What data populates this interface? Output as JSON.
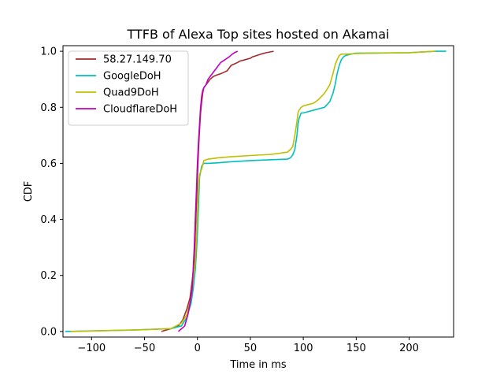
{
  "chart_data": {
    "type": "line",
    "title": "TTFB of Alexa Top sites hosted on Akamai",
    "xlabel": "Time in ms",
    "ylabel": "CDF",
    "xlim": [
      -127,
      242
    ],
    "ylim": [
      -0.02,
      1.02
    ],
    "xticks": [
      -100,
      -50,
      0,
      50,
      100,
      150,
      200
    ],
    "xtick_labels": [
      "−100",
      "−50",
      "0",
      "50",
      "100",
      "150",
      "200"
    ],
    "yticks": [
      0.0,
      0.2,
      0.4,
      0.6,
      0.8,
      1.0
    ],
    "ytick_labels": [
      "0.0",
      "0.2",
      "0.4",
      "0.6",
      "0.8",
      "1.0"
    ],
    "grid": false,
    "legend_position": "top-left",
    "series": [
      {
        "name": "58.27.149.70",
        "color": "#a52a2a",
        "x": [
          -34,
          -25,
          -18,
          -14,
          -10,
          -7,
          -5,
          -3,
          -2,
          -1,
          0,
          1,
          2,
          3,
          4,
          5,
          6,
          8,
          10,
          12,
          15,
          18,
          22,
          25,
          28,
          30,
          32,
          35,
          38,
          40,
          45,
          50,
          52,
          60,
          65,
          72
        ],
        "y": [
          0.0,
          0.01,
          0.02,
          0.04,
          0.08,
          0.12,
          0.18,
          0.25,
          0.35,
          0.45,
          0.55,
          0.65,
          0.72,
          0.78,
          0.82,
          0.85,
          0.87,
          0.88,
          0.89,
          0.9,
          0.91,
          0.915,
          0.92,
          0.925,
          0.93,
          0.94,
          0.95,
          0.955,
          0.96,
          0.965,
          0.97,
          0.975,
          0.98,
          0.99,
          0.995,
          1.0
        ]
      },
      {
        "name": "GoogleDoH",
        "color": "#00bfbf",
        "x": [
          -125,
          -60,
          -25,
          -15,
          -10,
          -6,
          -4,
          -2,
          -1,
          0,
          1,
          2,
          4,
          6,
          8,
          10,
          20,
          30,
          50,
          70,
          85,
          88,
          90,
          92,
          94,
          95,
          96,
          98,
          100,
          105,
          110,
          115,
          120,
          125,
          128,
          130,
          132,
          134,
          136,
          138,
          140,
          145,
          150,
          200,
          225,
          235
        ],
        "y": [
          0.0,
          0.005,
          0.01,
          0.02,
          0.05,
          0.1,
          0.15,
          0.22,
          0.28,
          0.35,
          0.45,
          0.55,
          0.59,
          0.6,
          0.6,
          0.6,
          0.602,
          0.605,
          0.61,
          0.613,
          0.615,
          0.62,
          0.63,
          0.65,
          0.7,
          0.74,
          0.76,
          0.78,
          0.78,
          0.785,
          0.79,
          0.795,
          0.8,
          0.82,
          0.85,
          0.88,
          0.92,
          0.95,
          0.97,
          0.98,
          0.985,
          0.99,
          0.993,
          0.995,
          1.0,
          1.0
        ]
      },
      {
        "name": "Quad9DoH",
        "color": "#bfbf00",
        "x": [
          -120,
          -60,
          -25,
          -15,
          -10,
          -6,
          -4,
          -2,
          -1,
          0,
          1,
          2,
          4,
          6,
          10,
          20,
          30,
          50,
          70,
          85,
          88,
          90,
          92,
          94,
          95,
          96,
          98,
          100,
          105,
          110,
          115,
          120,
          125,
          128,
          130,
          132,
          134,
          136,
          138,
          140,
          150,
          200,
          225
        ],
        "y": [
          0.0,
          0.005,
          0.01,
          0.03,
          0.06,
          0.12,
          0.18,
          0.25,
          0.33,
          0.42,
          0.52,
          0.56,
          0.58,
          0.61,
          0.615,
          0.62,
          0.623,
          0.628,
          0.632,
          0.64,
          0.65,
          0.66,
          0.7,
          0.75,
          0.78,
          0.79,
          0.8,
          0.805,
          0.81,
          0.815,
          0.83,
          0.85,
          0.88,
          0.92,
          0.95,
          0.97,
          0.985,
          0.99,
          0.99,
          0.99,
          0.992,
          0.995,
          1.0
        ]
      },
      {
        "name": "CloudflareDoH",
        "color": "#bf00bf",
        "x": [
          -18,
          -12,
          -9,
          -7,
          -5,
          -4,
          -3,
          -2,
          -1,
          0,
          1,
          2,
          3,
          4,
          5,
          6,
          8,
          10,
          12,
          14,
          16,
          18,
          20,
          22,
          24,
          26,
          28,
          30,
          33,
          35,
          38
        ],
        "y": [
          0.0,
          0.02,
          0.06,
          0.1,
          0.15,
          0.22,
          0.3,
          0.4,
          0.5,
          0.6,
          0.68,
          0.74,
          0.8,
          0.84,
          0.86,
          0.87,
          0.88,
          0.9,
          0.91,
          0.92,
          0.93,
          0.94,
          0.95,
          0.96,
          0.965,
          0.97,
          0.975,
          0.98,
          0.99,
          0.995,
          1.0
        ]
      }
    ]
  }
}
